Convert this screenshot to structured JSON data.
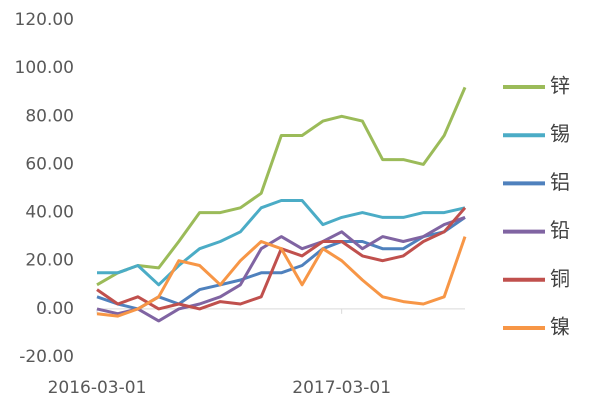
{
  "chart_data": {
    "type": "line",
    "x": [
      "2016-03-01",
      "2016-04-01",
      "2016-05-01",
      "2016-06-01",
      "2016-07-01",
      "2016-08-01",
      "2016-09-01",
      "2016-10-01",
      "2016-11-01",
      "2016-12-01",
      "2017-01-01",
      "2017-02-01",
      "2017-03-01",
      "2017-04-01",
      "2017-05-01",
      "2017-06-01",
      "2017-07-01",
      "2017-08-01",
      "2017-09-01"
    ],
    "xlim": [
      "2016-03-01",
      "2017-09-01"
    ],
    "xticks": [
      "2016-03-01",
      "2017-03-01"
    ],
    "ylim": [
      -20,
      120
    ],
    "yticks": [
      {
        "value": -20,
        "label": "-20.00"
      },
      {
        "value": 0,
        "label": "0.00"
      },
      {
        "value": 20,
        "label": "20.00"
      },
      {
        "value": 40,
        "label": "40.00"
      },
      {
        "value": 60,
        "label": "60.00"
      },
      {
        "value": 80,
        "label": "80.00"
      },
      {
        "value": 100,
        "label": "100.00"
      },
      {
        "value": 120,
        "label": "120.00"
      }
    ],
    "grid": false,
    "legend": "right",
    "series": [
      {
        "name": "锌",
        "color": "#9bbb59",
        "values": [
          10,
          15,
          18,
          17,
          28,
          40,
          40,
          42,
          48,
          72,
          72,
          78,
          80,
          78,
          62,
          62,
          60,
          72,
          92
        ]
      },
      {
        "name": "锡",
        "color": "#4bacc6",
        "values": [
          15,
          15,
          18,
          10,
          18,
          25,
          28,
          32,
          42,
          45,
          45,
          35,
          38,
          40,
          38,
          38,
          40,
          40,
          42
        ]
      },
      {
        "name": "铝",
        "color": "#4f81bd",
        "values": [
          5,
          2,
          0,
          5,
          2,
          8,
          10,
          12,
          15,
          15,
          18,
          25,
          28,
          28,
          25,
          25,
          30,
          32,
          38
        ]
      },
      {
        "name": "铅",
        "color": "#8064a2",
        "values": [
          0,
          -2,
          0,
          -5,
          0,
          2,
          5,
          10,
          25,
          30,
          25,
          28,
          32,
          25,
          30,
          28,
          30,
          35,
          38
        ]
      },
      {
        "name": "铜",
        "color": "#c0504d",
        "values": [
          8,
          2,
          5,
          0,
          2,
          0,
          3,
          2,
          5,
          25,
          22,
          28,
          28,
          22,
          20,
          22,
          28,
          32,
          42
        ]
      },
      {
        "name": "镍",
        "color": "#f79646",
        "values": [
          -2,
          -3,
          0,
          5,
          20,
          18,
          10,
          20,
          28,
          25,
          10,
          25,
          20,
          12,
          5,
          3,
          2,
          5,
          30
        ]
      }
    ]
  }
}
